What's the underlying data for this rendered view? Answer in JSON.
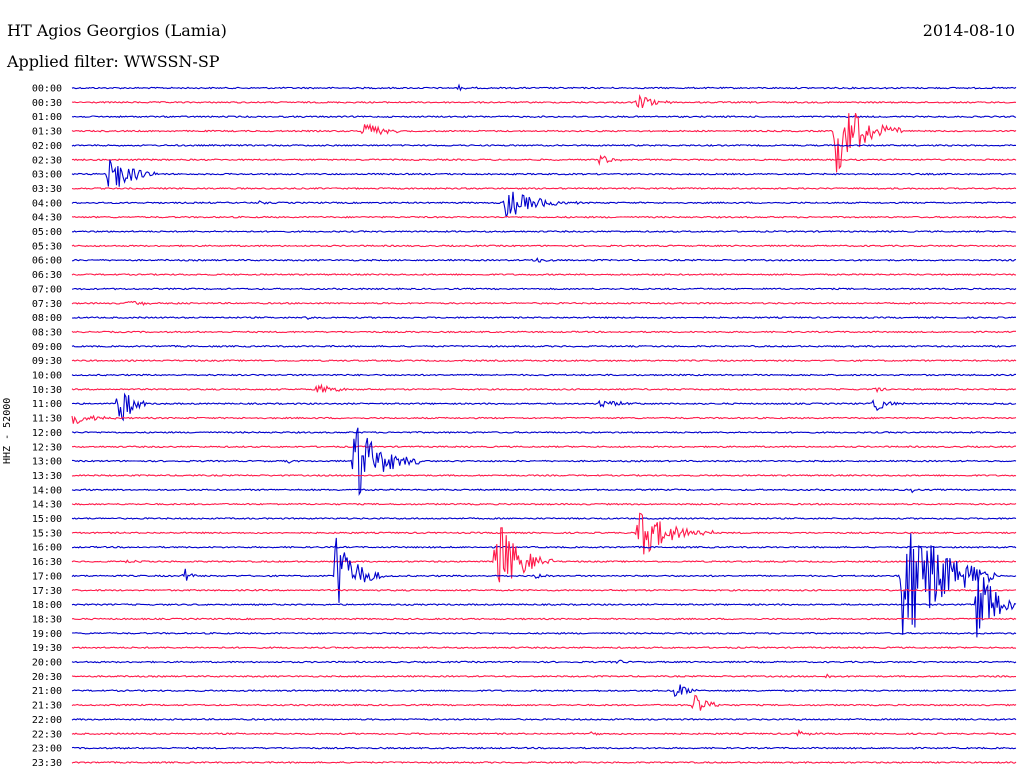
{
  "header": {
    "station": "HT Agios Georgios (Lamia)",
    "date": "2014-08-10",
    "filter": "Applied filter: WWSSN-SP"
  },
  "colors": {
    "blue": "#0000cc",
    "red": "#ff1a4a",
    "text": "#000000"
  },
  "chart_data": {
    "type": "helicorder",
    "title": "HT Agios Georgios (Lamia)",
    "date": "2014-08-10",
    "filter": "WWSSN-SP",
    "ylabel": "HHZ - 52000",
    "ylabel_parts": {
      "channel": "HHZ",
      "sep": "-",
      "scale": "52000"
    },
    "row_minutes": 30,
    "rows": [
      "00:00",
      "00:30",
      "01:00",
      "01:30",
      "02:00",
      "02:30",
      "03:00",
      "03:30",
      "04:00",
      "04:30",
      "05:00",
      "05:30",
      "06:00",
      "06:30",
      "07:00",
      "07:30",
      "08:00",
      "08:30",
      "09:00",
      "09:30",
      "10:00",
      "10:30",
      "11:00",
      "11:30",
      "12:00",
      "12:30",
      "13:00",
      "13:30",
      "14:00",
      "14:30",
      "15:00",
      "15:30",
      "16:00",
      "16:30",
      "17:00",
      "17:30",
      "18:00",
      "18:30",
      "19:00",
      "19:30",
      "20:00",
      "20:30",
      "21:00",
      "21:30",
      "22:00",
      "22:30",
      "23:00",
      "23:30"
    ],
    "trace_colors": [
      "blue",
      "red"
    ],
    "events": [
      {
        "row": 0,
        "t": 0.41,
        "amp": 3,
        "dur": 0.02
      },
      {
        "row": 1,
        "t": 0.6,
        "amp": 7,
        "dur": 0.05
      },
      {
        "row": 3,
        "t": 0.31,
        "amp": 13,
        "dur": 0.04
      },
      {
        "row": 3,
        "t": 0.81,
        "amp": 45,
        "dur": 0.07
      },
      {
        "row": 5,
        "t": 0.56,
        "amp": 6,
        "dur": 0.03
      },
      {
        "row": 6,
        "t": 0.04,
        "amp": 26,
        "dur": 0.05
      },
      {
        "row": 8,
        "t": 0.46,
        "amp": 16,
        "dur": 0.08
      },
      {
        "row": 8,
        "t": 0.2,
        "amp": 3,
        "dur": 0.01
      },
      {
        "row": 12,
        "t": 0.49,
        "amp": 3,
        "dur": 0.04
      },
      {
        "row": 15,
        "t": 0.06,
        "amp": 3,
        "dur": 0.06
      },
      {
        "row": 16,
        "t": 0.25,
        "amp": 3,
        "dur": 0.01
      },
      {
        "row": 21,
        "t": 0.26,
        "amp": 5,
        "dur": 0.05
      },
      {
        "row": 21,
        "t": 0.85,
        "amp": 4,
        "dur": 0.02
      },
      {
        "row": 22,
        "t": 0.05,
        "amp": 30,
        "dur": 0.03
      },
      {
        "row": 22,
        "t": 0.56,
        "amp": 5,
        "dur": 0.05
      },
      {
        "row": 22,
        "t": 0.85,
        "amp": 8,
        "dur": 0.04
      },
      {
        "row": 23,
        "t": 0.0,
        "amp": 8,
        "dur": 0.05
      },
      {
        "row": 26,
        "t": 0.3,
        "amp": 40,
        "dur": 0.07
      },
      {
        "row": 26,
        "t": 0.23,
        "amp": 3,
        "dur": 0.01
      },
      {
        "row": 28,
        "t": 0.89,
        "amp": 3,
        "dur": 0.01
      },
      {
        "row": 31,
        "t": 0.6,
        "amp": 28,
        "dur": 0.08
      },
      {
        "row": 33,
        "t": 0.45,
        "amp": 45,
        "dur": 0.06
      },
      {
        "row": 33,
        "t": 0.06,
        "amp": 3,
        "dur": 0.02
      },
      {
        "row": 34,
        "t": 0.28,
        "amp": 45,
        "dur": 0.05
      },
      {
        "row": 34,
        "t": 0.12,
        "amp": 7,
        "dur": 0.02
      },
      {
        "row": 34,
        "t": 0.49,
        "amp": 4,
        "dur": 0.02
      },
      {
        "row": 34,
        "t": 0.88,
        "amp": 80,
        "dur": 0.1
      },
      {
        "row": 36,
        "t": 0.96,
        "amp": 55,
        "dur": 0.04
      },
      {
        "row": 40,
        "t": 0.58,
        "amp": 3,
        "dur": 0.01
      },
      {
        "row": 41,
        "t": 0.8,
        "amp": 3,
        "dur": 0.01
      },
      {
        "row": 42,
        "t": 0.64,
        "amp": 10,
        "dur": 0.03
      },
      {
        "row": 43,
        "t": 0.66,
        "amp": 14,
        "dur": 0.03
      },
      {
        "row": 45,
        "t": 0.77,
        "amp": 4,
        "dur": 0.02
      },
      {
        "row": 44,
        "t": 0.77,
        "amp": 3,
        "dur": 0.01
      },
      {
        "row": 45,
        "t": 0.55,
        "amp": 3,
        "dur": 0.02
      }
    ]
  }
}
